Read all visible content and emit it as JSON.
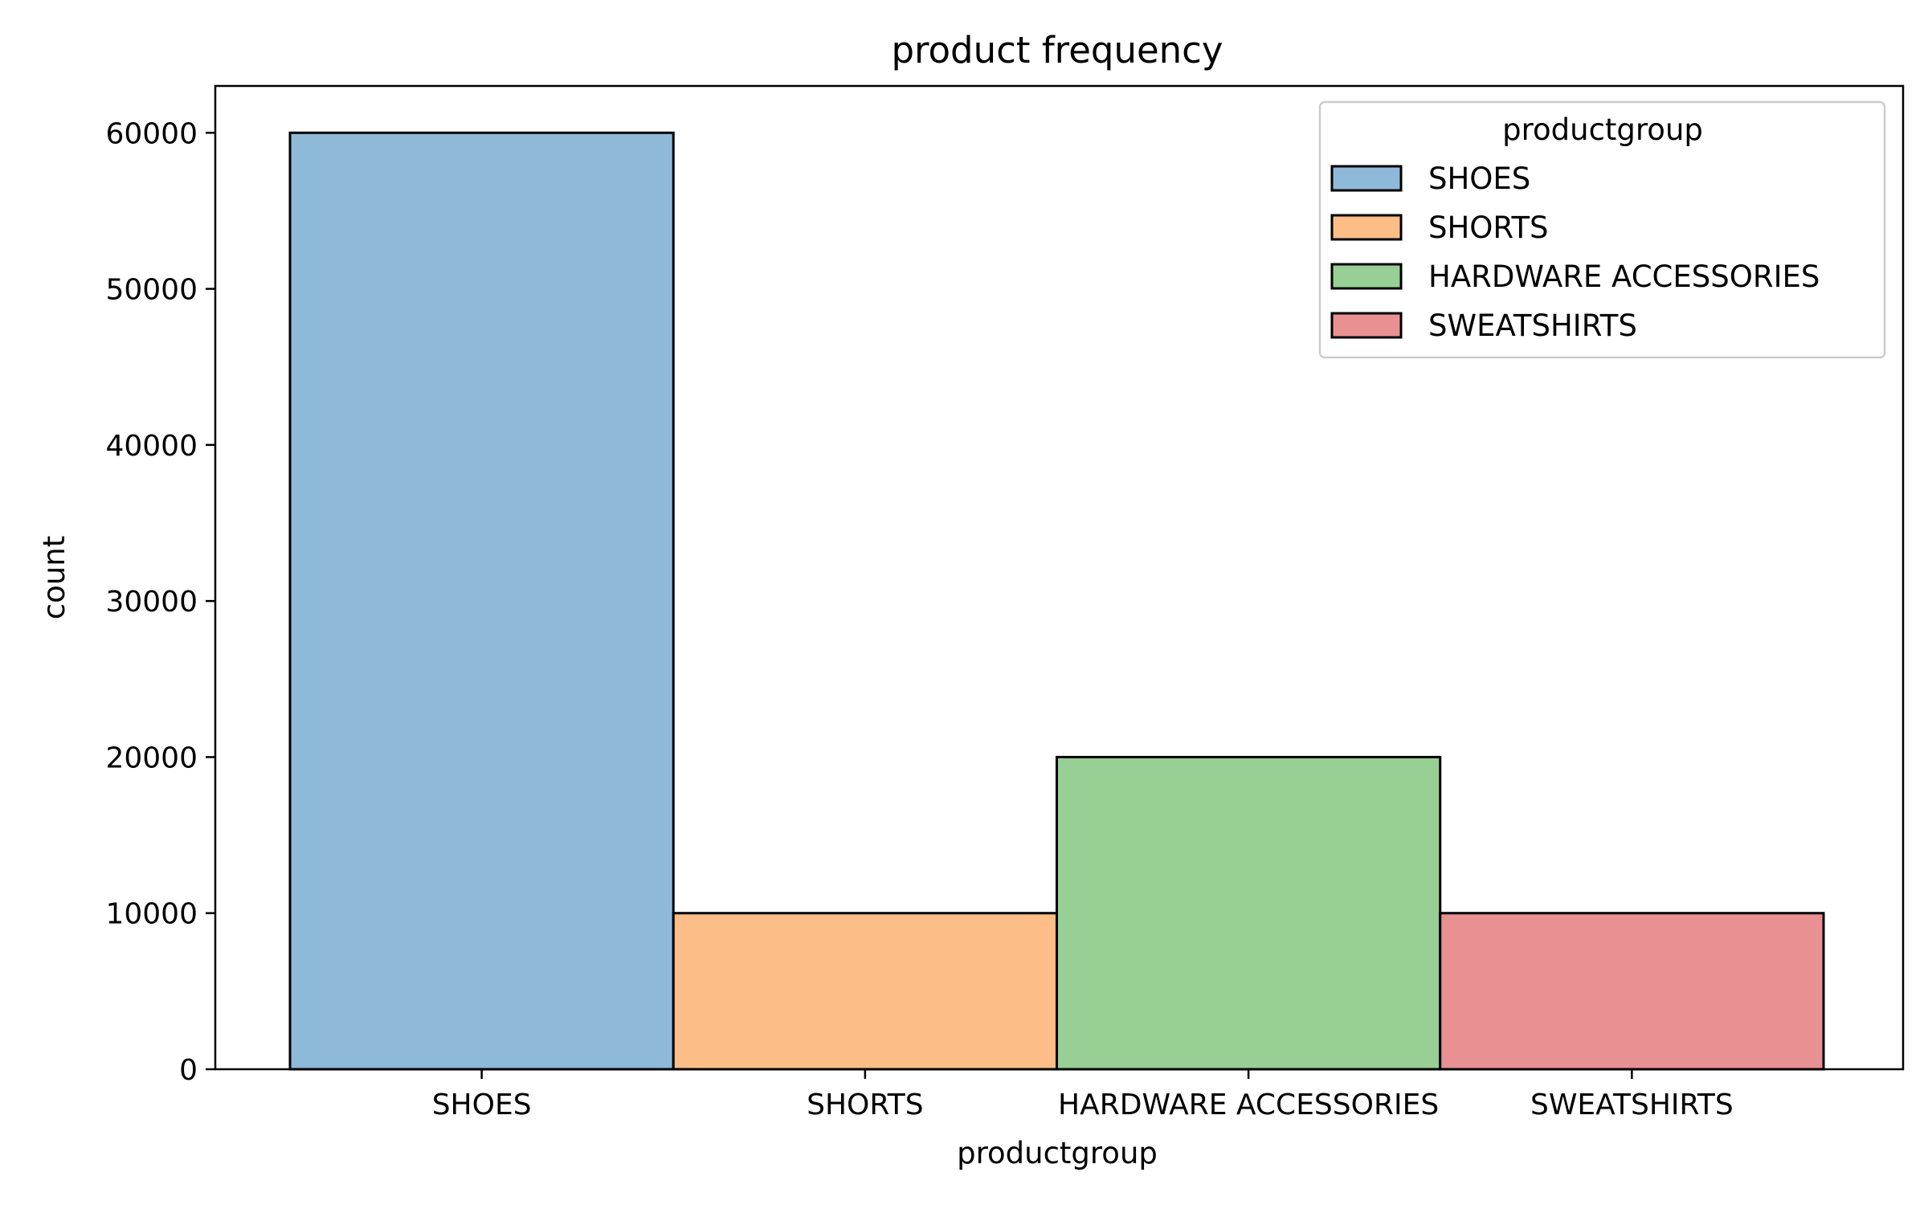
{
  "chart_data": {
    "type": "bar",
    "title": "product frequency",
    "xlabel": "productgroup",
    "ylabel": "count",
    "categories": [
      "SHOES",
      "SHORTS",
      "HARDWARE ACCESSORIES",
      "SWEATSHIRTS"
    ],
    "values": [
      60000,
      10000,
      20000,
      10000
    ],
    "colors": [
      "#8fb9d9",
      "#fdbd87",
      "#97cf95",
      "#e99092"
    ],
    "ylim": [
      0,
      63000
    ],
    "yticks": [
      0,
      10000,
      20000,
      30000,
      40000,
      50000,
      60000
    ],
    "grid": false,
    "legend": {
      "title": "productgroup",
      "placement": "top-right",
      "entries": [
        "SHOES",
        "SHORTS",
        "HARDWARE ACCESSORIES",
        "SWEATSHIRTS"
      ]
    }
  }
}
